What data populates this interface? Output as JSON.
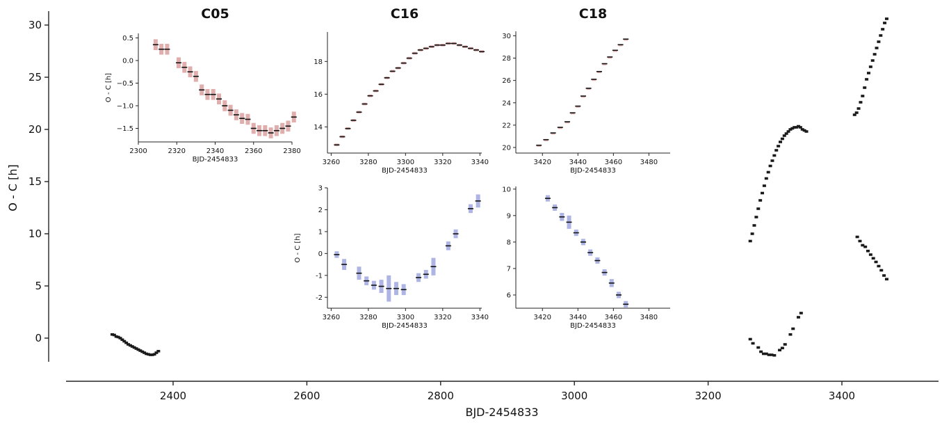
{
  "chart_data": [
    {
      "type": "scatter",
      "id": "main",
      "xlabel": "BJD-2454833",
      "ylabel": "O - C [h]",
      "xlim": [
        2245,
        3530
      ],
      "ylim": [
        -2.5,
        31.5
      ],
      "xticks": [
        2400,
        2600,
        2800,
        3000,
        3200,
        3400
      ],
      "yticks": [
        0,
        5,
        10,
        15,
        20,
        25,
        30
      ],
      "grid": false,
      "series": [
        {
          "color": "#1a1a1a",
          "points": [
            [
              2309,
              0.35
            ],
            [
              2312,
              0.3
            ],
            [
              2315,
              0.15
            ],
            [
              2318,
              0.1
            ],
            [
              2321,
              0.0
            ],
            [
              2324,
              -0.15
            ],
            [
              2327,
              -0.3
            ],
            [
              2330,
              -0.45
            ],
            [
              2333,
              -0.6
            ],
            [
              2336,
              -0.7
            ],
            [
              2339,
              -0.8
            ],
            [
              2342,
              -0.9
            ],
            [
              2345,
              -1.0
            ],
            [
              2348,
              -1.1
            ],
            [
              2351,
              -1.2
            ],
            [
              2354,
              -1.3
            ],
            [
              2357,
              -1.4
            ],
            [
              2360,
              -1.5
            ],
            [
              2363,
              -1.55
            ],
            [
              2366,
              -1.6
            ],
            [
              2369,
              -1.6
            ],
            [
              2372,
              -1.55
            ],
            [
              2375,
              -1.4
            ],
            [
              2378,
              -1.25
            ]
          ]
        },
        {
          "color": "#1a1a1a",
          "points": [
            [
              3263,
              9.3
            ],
            [
              3266,
              10.0
            ],
            [
              3269,
              10.8
            ],
            [
              3272,
              11.6
            ],
            [
              3275,
              12.4
            ],
            [
              3278,
              13.2
            ],
            [
              3281,
              13.9
            ],
            [
              3284,
              14.6
            ],
            [
              3287,
              15.3
            ],
            [
              3290,
              15.9
            ],
            [
              3293,
              16.5
            ],
            [
              3296,
              17.0
            ],
            [
              3299,
              17.5
            ],
            [
              3302,
              18.0
            ],
            [
              3305,
              18.4
            ],
            [
              3308,
              18.8
            ],
            [
              3311,
              19.1
            ],
            [
              3314,
              19.4
            ],
            [
              3317,
              19.6
            ],
            [
              3320,
              19.8
            ],
            [
              3323,
              20.0
            ],
            [
              3326,
              20.1
            ],
            [
              3329,
              20.2
            ],
            [
              3332,
              20.2
            ],
            [
              3335,
              20.3
            ],
            [
              3338,
              20.2
            ],
            [
              3341,
              20.0
            ],
            [
              3344,
              19.9
            ],
            [
              3347,
              19.8
            ]
          ]
        },
        {
          "color": "#1a1a1a",
          "points": [
            [
              3263,
              -0.1
            ],
            [
              3267,
              -0.5
            ],
            [
              3275,
              -0.9
            ],
            [
              3279,
              -1.3
            ],
            [
              3283,
              -1.5
            ],
            [
              3287,
              -1.5
            ],
            [
              3291,
              -1.6
            ],
            [
              3295,
              -1.6
            ],
            [
              3299,
              -1.65
            ],
            [
              3307,
              -1.15
            ],
            [
              3311,
              -0.95
            ],
            [
              3315,
              -0.6
            ],
            [
              3323,
              0.35
            ],
            [
              3327,
              0.9
            ],
            [
              3335,
              2.0
            ],
            [
              3339,
              2.4
            ]
          ]
        },
        {
          "color": "#1a1a1a",
          "points": [
            [
              3419,
              21.4
            ],
            [
              3422,
              21.6
            ],
            [
              3425,
              22.0
            ],
            [
              3428,
              22.6
            ],
            [
              3431,
              23.2
            ],
            [
              3434,
              24.0
            ],
            [
              3437,
              24.8
            ],
            [
              3440,
              25.4
            ],
            [
              3443,
              26.0
            ],
            [
              3446,
              26.6
            ],
            [
              3449,
              27.2
            ],
            [
              3452,
              27.8
            ],
            [
              3455,
              28.4
            ],
            [
              3458,
              29.0
            ],
            [
              3461,
              29.6
            ],
            [
              3464,
              30.2
            ],
            [
              3467,
              30.6
            ]
          ]
        },
        {
          "color": "#1a1a1a",
          "points": [
            [
              3423,
              9.7
            ],
            [
              3427,
              9.3
            ],
            [
              3431,
              8.9
            ],
            [
              3435,
              8.75
            ],
            [
              3439,
              8.35
            ],
            [
              3443,
              8.0
            ],
            [
              3447,
              7.65
            ],
            [
              3451,
              7.3
            ],
            [
              3455,
              6.9
            ],
            [
              3459,
              6.5
            ],
            [
              3463,
              6.0
            ],
            [
              3467,
              5.65
            ]
          ]
        }
      ]
    },
    {
      "type": "scatter",
      "id": "c05",
      "title": "C05",
      "xlabel": "BJD-2454833",
      "ylabel": "O - C [h]",
      "xlim": [
        2300,
        2380
      ],
      "ylim": [
        -1.8,
        0.6
      ],
      "xticks": [
        2300,
        2320,
        2340,
        2360,
        2380
      ],
      "yticks": [
        -1.5,
        -1.0,
        -0.5,
        0.0,
        0.5
      ],
      "error_color": "#dca0a0",
      "points": [
        [
          2309,
          0.35,
          0.12
        ],
        [
          2312,
          0.25,
          0.12
        ],
        [
          2315,
          0.25,
          0.12
        ],
        [
          2321,
          -0.05,
          0.12
        ],
        [
          2324,
          -0.15,
          0.12
        ],
        [
          2327,
          -0.25,
          0.12
        ],
        [
          2330,
          -0.35,
          0.12
        ],
        [
          2333,
          -0.65,
          0.12
        ],
        [
          2336,
          -0.75,
          0.12
        ],
        [
          2339,
          -0.75,
          0.12
        ],
        [
          2342,
          -0.85,
          0.12
        ],
        [
          2345,
          -1.0,
          0.12
        ],
        [
          2348,
          -1.1,
          0.12
        ],
        [
          2351,
          -1.2,
          0.12
        ],
        [
          2354,
          -1.28,
          0.12
        ],
        [
          2357,
          -1.3,
          0.12
        ],
        [
          2360,
          -1.5,
          0.12
        ],
        [
          2363,
          -1.55,
          0.12
        ],
        [
          2366,
          -1.55,
          0.12
        ],
        [
          2369,
          -1.6,
          0.12
        ],
        [
          2372,
          -1.55,
          0.12
        ],
        [
          2375,
          -1.5,
          0.12
        ],
        [
          2378,
          -1.45,
          0.12
        ],
        [
          2381,
          -1.25,
          0.12
        ]
      ]
    },
    {
      "type": "scatter",
      "id": "c16_top",
      "title": "C16",
      "xlabel": "BJD-2454833",
      "ylabel": "",
      "xlim": [
        3258,
        3341
      ],
      "ylim": [
        12.4,
        19.8
      ],
      "xticks": [
        3260,
        3280,
        3300,
        3320,
        3340
      ],
      "yticks": [
        14,
        16,
        18
      ],
      "error_color": "#dca0a0",
      "points": [
        [
          3263,
          12.9,
          0.08
        ],
        [
          3266,
          13.4,
          0.08
        ],
        [
          3269,
          13.9,
          0.08
        ],
        [
          3272,
          14.4,
          0.08
        ],
        [
          3275,
          14.9,
          0.08
        ],
        [
          3278,
          15.4,
          0.08
        ],
        [
          3281,
          15.9,
          0.08
        ],
        [
          3284,
          16.2,
          0.08
        ],
        [
          3287,
          16.6,
          0.08
        ],
        [
          3290,
          17.0,
          0.08
        ],
        [
          3293,
          17.4,
          0.08
        ],
        [
          3296,
          17.6,
          0.08
        ],
        [
          3299,
          17.9,
          0.08
        ],
        [
          3302,
          18.2,
          0.08
        ],
        [
          3305,
          18.5,
          0.08
        ],
        [
          3308,
          18.7,
          0.08
        ],
        [
          3311,
          18.8,
          0.08
        ],
        [
          3314,
          18.9,
          0.08
        ],
        [
          3317,
          19.0,
          0.08
        ],
        [
          3320,
          19.0,
          0.08
        ],
        [
          3323,
          19.1,
          0.08
        ],
        [
          3326,
          19.1,
          0.08
        ],
        [
          3329,
          19.0,
          0.08
        ],
        [
          3332,
          18.9,
          0.08
        ],
        [
          3335,
          18.8,
          0.08
        ],
        [
          3338,
          18.7,
          0.08
        ],
        [
          3341,
          18.6,
          0.08
        ]
      ]
    },
    {
      "type": "scatter",
      "id": "c16_bottom",
      "xlabel": "BJD-2454833",
      "ylabel": "O - C [h]",
      "xlim": [
        3258,
        3341
      ],
      "ylim": [
        -2.5,
        3.0
      ],
      "xticks": [
        3260,
        3280,
        3300,
        3320,
        3340
      ],
      "yticks": [
        -2,
        -1,
        0,
        1,
        2,
        3
      ],
      "error_color": "#a0a8e0",
      "points": [
        [
          3263,
          -0.05,
          0.15
        ],
        [
          3267,
          -0.5,
          0.25
        ],
        [
          3275,
          -0.9,
          0.3
        ],
        [
          3279,
          -1.25,
          0.2
        ],
        [
          3283,
          -1.45,
          0.2
        ],
        [
          3287,
          -1.5,
          0.3
        ],
        [
          3291,
          -1.6,
          0.6
        ],
        [
          3295,
          -1.6,
          0.3
        ],
        [
          3299,
          -1.65,
          0.25
        ],
        [
          3307,
          -1.1,
          0.2
        ],
        [
          3311,
          -0.95,
          0.2
        ],
        [
          3315,
          -0.6,
          0.4
        ],
        [
          3323,
          0.35,
          0.2
        ],
        [
          3327,
          0.9,
          0.2
        ],
        [
          3335,
          2.05,
          0.2
        ],
        [
          3339,
          2.4,
          0.3
        ]
      ]
    },
    {
      "type": "scatter",
      "id": "c18_top",
      "title": "C18",
      "xlabel": "BJD-2454833",
      "ylabel": "",
      "xlim": [
        3405,
        3492
      ],
      "ylim": [
        19.5,
        30.4
      ],
      "xticks": [
        3420,
        3440,
        3460,
        3480
      ],
      "yticks": [
        20,
        22,
        24,
        26,
        28,
        30
      ],
      "error_color": "#dca0a0",
      "points": [
        [
          3418,
          20.2,
          0.05
        ],
        [
          3422,
          20.7,
          0.05
        ],
        [
          3426,
          21.3,
          0.05
        ],
        [
          3430,
          21.8,
          0.05
        ],
        [
          3434,
          22.3,
          0.05
        ],
        [
          3437,
          23.1,
          0.05
        ],
        [
          3440,
          23.7,
          0.05
        ],
        [
          3443,
          24.6,
          0.05
        ],
        [
          3446,
          25.3,
          0.05
        ],
        [
          3449,
          26.1,
          0.05
        ],
        [
          3452,
          26.8,
          0.05
        ],
        [
          3455,
          27.5,
          0.05
        ],
        [
          3458,
          28.1,
          0.05
        ],
        [
          3461,
          28.7,
          0.05
        ],
        [
          3464,
          29.2,
          0.05
        ],
        [
          3467,
          29.7,
          0.05
        ]
      ]
    },
    {
      "type": "scatter",
      "id": "c18_bottom",
      "xlabel": "BJD-2454833",
      "ylabel": "",
      "xlim": [
        3405,
        3492
      ],
      "ylim": [
        5.5,
        10.1
      ],
      "xticks": [
        3420,
        3440,
        3460,
        3480
      ],
      "yticks": [
        6,
        7,
        8,
        9,
        10
      ],
      "error_color": "#a0a8e0",
      "points": [
        [
          3423,
          9.65,
          0.12
        ],
        [
          3427,
          9.3,
          0.12
        ],
        [
          3431,
          8.95,
          0.15
        ],
        [
          3435,
          8.75,
          0.25
        ],
        [
          3439,
          8.35,
          0.12
        ],
        [
          3443,
          8.0,
          0.12
        ],
        [
          3447,
          7.6,
          0.12
        ],
        [
          3451,
          7.3,
          0.12
        ],
        [
          3455,
          6.85,
          0.12
        ],
        [
          3459,
          6.45,
          0.15
        ],
        [
          3463,
          6.0,
          0.12
        ],
        [
          3467,
          5.65,
          0.12
        ]
      ]
    }
  ]
}
